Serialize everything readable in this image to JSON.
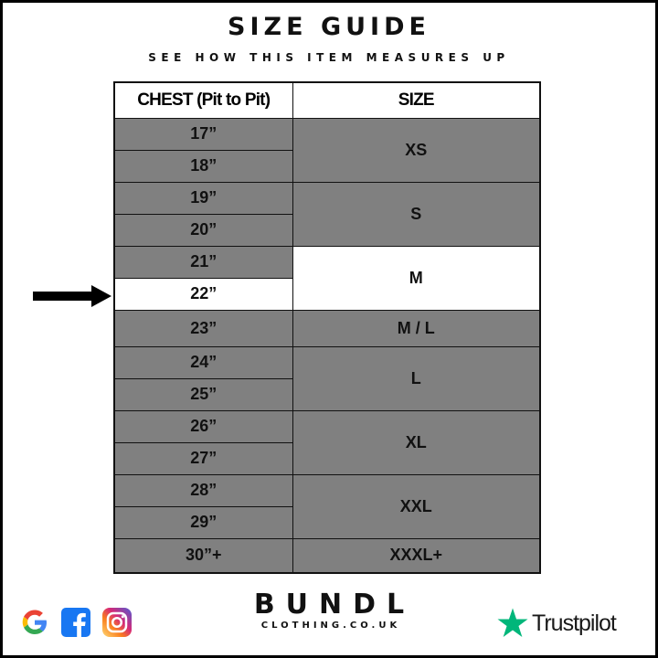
{
  "header": {
    "title": "SIZE GUIDE",
    "subtitle": "SEE HOW THIS ITEM MEASURES UP"
  },
  "table": {
    "columns": [
      "CHEST (Pit to Pit)",
      "SIZE"
    ],
    "chest": [
      "17”",
      "18”",
      "19”",
      "20”",
      "21”",
      "22”",
      "23”",
      "24”",
      "25”",
      "26”",
      "27”",
      "28”",
      "29”",
      "30”+"
    ],
    "sizes": [
      "XS",
      "S",
      "M",
      "M / L",
      "L",
      "XL",
      "XXL",
      "XXXL+"
    ],
    "highlighted_chest": "22”",
    "highlighted_size": "M"
  },
  "colors": {
    "row_fill": "#808080",
    "highlight_fill": "#ffffff",
    "border": "#111111",
    "trustpilot_star": "#00b67a"
  },
  "footer": {
    "social_icons": [
      "google-icon",
      "facebook-icon",
      "instagram-icon"
    ],
    "brand_name": "BUNDL",
    "brand_domain": "CLOTHING.CO.UK",
    "trustpilot_label": "Trustpilot"
  }
}
